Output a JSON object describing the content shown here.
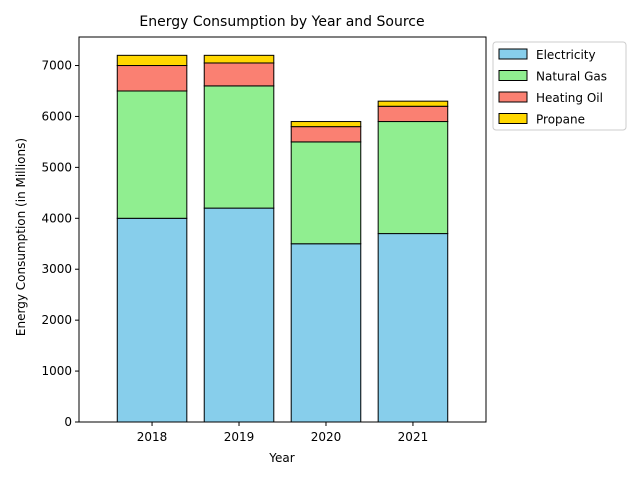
{
  "chart_data": {
    "type": "bar",
    "stacked": true,
    "title": "Energy Consumption by Year and Source",
    "xlabel": "Year",
    "ylabel": "Energy Consumption (in Millions)",
    "categories": [
      "2018",
      "2019",
      "2020",
      "2021"
    ],
    "ylim": [
      0,
      7560
    ],
    "yticks": [
      0,
      1000,
      2000,
      3000,
      4000,
      5000,
      6000,
      7000
    ],
    "grid": false,
    "legend_position": "outside-upper-right",
    "series": [
      {
        "name": "Electricity",
        "color": "#87CEEB",
        "values": [
          4000,
          4200,
          3500,
          3700
        ]
      },
      {
        "name": "Natural Gas",
        "color": "#90EE90",
        "values": [
          2500,
          2400,
          2000,
          2200
        ]
      },
      {
        "name": "Heating Oil",
        "color": "#FA8072",
        "values": [
          500,
          450,
          300,
          300
        ]
      },
      {
        "name": "Propane",
        "color": "#FFD700",
        "values": [
          200,
          150,
          100,
          100
        ]
      }
    ]
  }
}
